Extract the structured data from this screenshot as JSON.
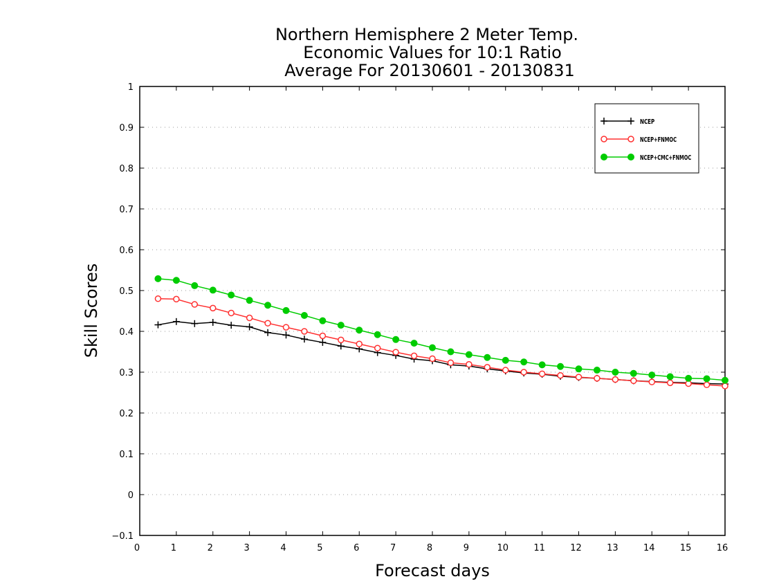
{
  "chart_data": {
    "type": "line",
    "title": [
      "Northern Hemisphere 2 Meter Temp.",
      "Economic Values for 10:1 Ratio",
      "Average For 20130601 - 20130831"
    ],
    "xlabel": "Forecast days",
    "ylabel": "Skill Scores",
    "xlim": [
      0,
      16
    ],
    "ylim": [
      -0.1,
      1
    ],
    "xticks": [
      "0",
      "1",
      "2",
      "3",
      "4",
      "5",
      "6",
      "7",
      "8",
      "9",
      "10",
      "11",
      "12",
      "13",
      "14",
      "15",
      "16"
    ],
    "yticks": [
      "−0.1",
      "0",
      "0.1",
      "0.2",
      "0.3",
      "0.4",
      "0.5",
      "0.6",
      "0.7",
      "0.8",
      "0.9",
      "1"
    ],
    "grid": true,
    "legend_position": "top-right",
    "x": [
      0.5,
      1,
      1.5,
      2,
      2.5,
      3,
      3.5,
      4,
      4.5,
      5,
      5.5,
      6,
      6.5,
      7,
      7.5,
      8,
      8.5,
      9,
      9.5,
      10,
      10.5,
      11,
      11.5,
      12,
      12.5,
      13,
      13.5,
      14,
      14.5,
      15,
      15.5,
      16
    ],
    "series": [
      {
        "name": "NCEP",
        "color": "#000000",
        "marker": "plus",
        "values": [
          0.416,
          0.424,
          0.419,
          0.422,
          0.415,
          0.411,
          0.397,
          0.391,
          0.381,
          0.373,
          0.364,
          0.357,
          0.348,
          0.341,
          0.332,
          0.328,
          0.318,
          0.315,
          0.308,
          0.303,
          0.298,
          0.295,
          0.29,
          0.287,
          0.285,
          0.282,
          0.279,
          0.277,
          0.275,
          0.274,
          0.272,
          0.271
        ]
      },
      {
        "name": "NCEP+FNMOC",
        "color": "#ff3030",
        "marker": "open-circle",
        "values": [
          0.48,
          0.479,
          0.466,
          0.457,
          0.445,
          0.433,
          0.42,
          0.41,
          0.4,
          0.389,
          0.379,
          0.369,
          0.359,
          0.349,
          0.34,
          0.333,
          0.323,
          0.319,
          0.312,
          0.305,
          0.3,
          0.296,
          0.292,
          0.288,
          0.285,
          0.282,
          0.279,
          0.276,
          0.274,
          0.272,
          0.269,
          0.266
        ]
      },
      {
        "name": "NCEP+CMC+FNMOC",
        "color": "#00cc00",
        "marker": "filled-circle",
        "values": [
          0.529,
          0.525,
          0.512,
          0.501,
          0.489,
          0.476,
          0.464,
          0.451,
          0.439,
          0.426,
          0.415,
          0.403,
          0.392,
          0.38,
          0.371,
          0.36,
          0.35,
          0.343,
          0.336,
          0.329,
          0.325,
          0.318,
          0.314,
          0.308,
          0.305,
          0.3,
          0.297,
          0.293,
          0.289,
          0.285,
          0.284,
          0.28
        ]
      }
    ]
  }
}
